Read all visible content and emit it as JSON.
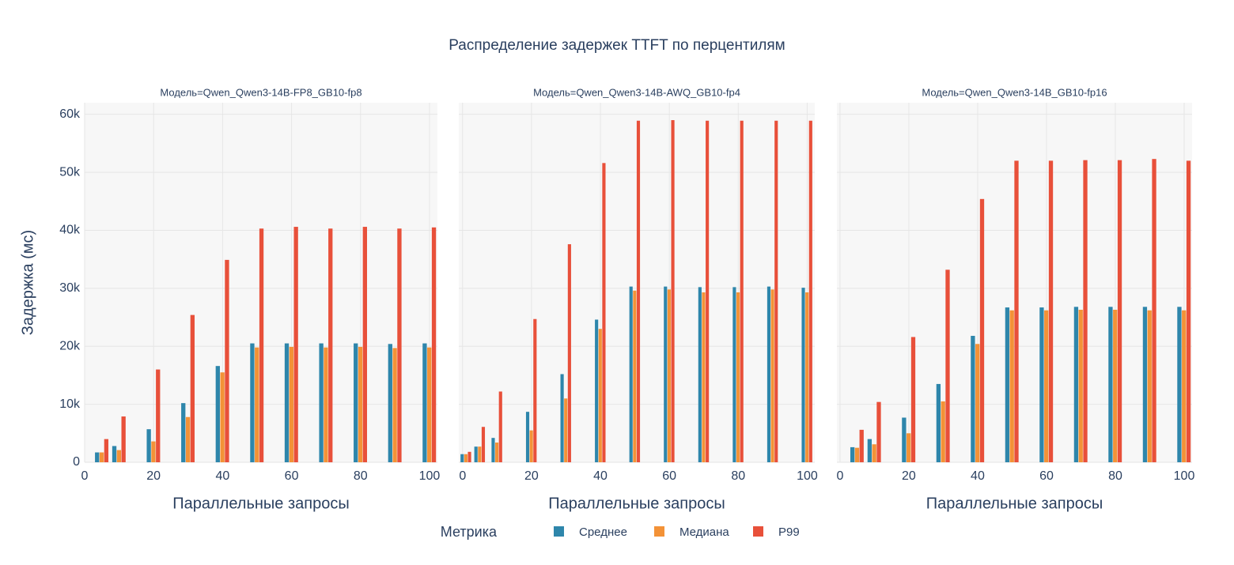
{
  "title": "Распределение задержек TTFT по перцентилям",
  "legend": {
    "title": "Метрика"
  },
  "chart_data": [
    {
      "type": "bar",
      "title": "Модель=Qwen_Qwen3-14B-FP8_GB10-fp8",
      "x_label": "Параллельные запросы",
      "y_label": "Задержка (мс)",
      "x": [
        5,
        10,
        20,
        30,
        40,
        50,
        60,
        70,
        80,
        90,
        100
      ],
      "series": [
        {
          "name": "Среднее",
          "color": "#2e86ab",
          "values": [
            1700,
            2800,
            5700,
            10200,
            16600,
            20500,
            20500,
            20500,
            20500,
            20400,
            20500
          ]
        },
        {
          "name": "Медиана",
          "color": "#f39237",
          "values": [
            1700,
            2100,
            3600,
            7800,
            15500,
            19800,
            19900,
            19800,
            19900,
            19700,
            19800
          ]
        },
        {
          "name": "P99",
          "color": "#e8503a",
          "values": [
            4000,
            7900,
            16000,
            25400,
            34900,
            40300,
            40600,
            40300,
            40600,
            40300,
            40500
          ]
        }
      ],
      "xlim": [
        0,
        102.3
      ],
      "xticks": [
        0,
        20,
        40,
        60,
        80,
        100
      ],
      "ylim": [
        0,
        62000
      ],
      "yticks": [
        0,
        {
          "value": 10000,
          "label": "10k"
        },
        {
          "value": 20000,
          "label": "20k"
        },
        {
          "value": 30000,
          "label": "30k"
        },
        {
          "value": 40000,
          "label": "40k"
        },
        {
          "value": 50000,
          "label": "50k"
        },
        {
          "value": 60000,
          "label": "60k"
        }
      ],
      "grid": true
    },
    {
      "type": "bar",
      "title": "Модель=Qwen_Qwen3-14B-AWQ_GB10-fp4",
      "x_label": "Параллельные запросы",
      "x": [
        1,
        5,
        10,
        20,
        30,
        40,
        50,
        60,
        70,
        80,
        90,
        100
      ],
      "series": [
        {
          "name": "Среднее",
          "color": "#2e86ab",
          "values": [
            1400,
            2700,
            4200,
            8700,
            15200,
            24600,
            30300,
            30300,
            30200,
            30200,
            30300,
            30100
          ]
        },
        {
          "name": "Медиана",
          "color": "#f39237",
          "values": [
            1400,
            2700,
            3400,
            5500,
            11000,
            23000,
            29600,
            29800,
            29300,
            29300,
            29800,
            29300
          ]
        },
        {
          "name": "P99",
          "color": "#e8503a",
          "values": [
            1800,
            6100,
            12200,
            24700,
            37600,
            51600,
            58900,
            59000,
            58900,
            58900,
            58900,
            58900
          ]
        }
      ],
      "xlim": [
        -1.1,
        102.2
      ],
      "xticks": [
        0,
        20,
        40,
        60,
        80,
        100
      ],
      "ylim": [
        0,
        62000
      ],
      "yticks": [
        0,
        {
          "value": 10000,
          "label": "10k"
        },
        {
          "value": 20000,
          "label": "20k"
        },
        {
          "value": 30000,
          "label": "30k"
        },
        {
          "value": 40000,
          "label": "40k"
        },
        {
          "value": 50000,
          "label": "50k"
        },
        {
          "value": 60000,
          "label": "60k"
        }
      ],
      "grid": true
    },
    {
      "type": "bar",
      "title": "Модель=Qwen_Qwen3-14B_GB10-fp16",
      "x_label": "Параллельные запросы",
      "x": [
        5,
        10,
        20,
        30,
        40,
        50,
        60,
        70,
        80,
        90,
        100
      ],
      "series": [
        {
          "name": "Среднее",
          "color": "#2e86ab",
          "values": [
            2600,
            4000,
            7700,
            13500,
            21800,
            26700,
            26700,
            26800,
            26800,
            26800,
            26800
          ]
        },
        {
          "name": "Медиана",
          "color": "#f39237",
          "values": [
            2500,
            3100,
            5000,
            10500,
            20400,
            26200,
            26200,
            26300,
            26300,
            26200,
            26200
          ]
        },
        {
          "name": "P99",
          "color": "#e8503a",
          "values": [
            5600,
            10400,
            21600,
            33200,
            45400,
            52000,
            52000,
            52100,
            52100,
            52300,
            52000
          ]
        }
      ],
      "xlim": [
        -0.9,
        102.3
      ],
      "xticks": [
        0,
        20,
        40,
        60,
        80,
        100
      ],
      "ylim": [
        0,
        62000
      ],
      "yticks": [
        0,
        {
          "value": 10000,
          "label": "10k"
        },
        {
          "value": 20000,
          "label": "20k"
        },
        {
          "value": 30000,
          "label": "30k"
        },
        {
          "value": 40000,
          "label": "40k"
        },
        {
          "value": 50000,
          "label": "50k"
        },
        {
          "value": 60000,
          "label": "60k"
        }
      ],
      "grid": true
    }
  ]
}
